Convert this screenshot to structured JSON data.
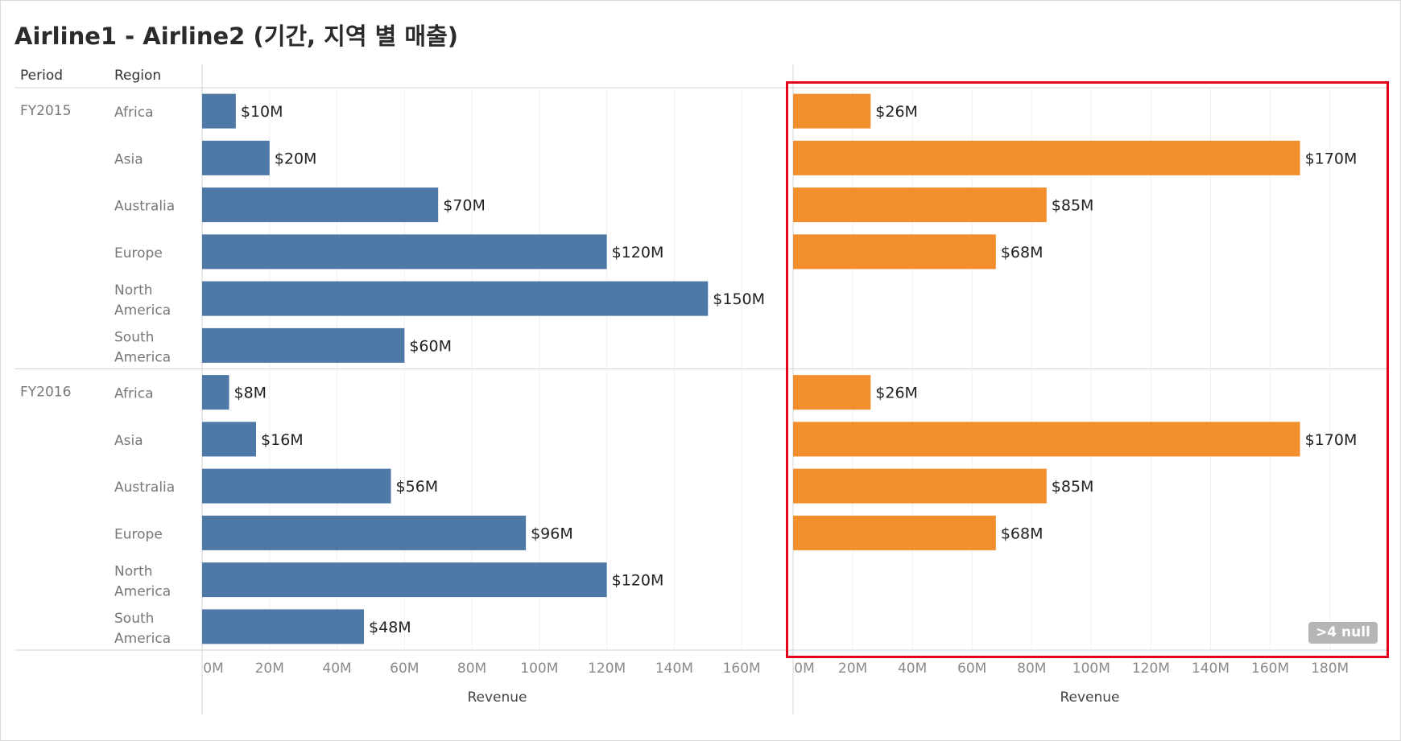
{
  "title": "Airline1 - Airline2 (기간, 지역 별 매출)",
  "headers": {
    "period": "Period",
    "region": "Region"
  },
  "null_badge": ">4 null",
  "colors": {
    "airline1": "#4e79a7",
    "airline2": "#f28e2b",
    "highlight": "#e3001b"
  },
  "chart_data": {
    "type": "bar",
    "orientation": "horizontal",
    "title": "Airline1 - Airline2 (기간, 지역 별 매출)",
    "groups": [
      {
        "period": "FY2015",
        "regions": [
          "Africa",
          "Asia",
          "Australia",
          "Europe",
          "North America",
          "South America"
        ]
      },
      {
        "period": "FY2016",
        "regions": [
          "Africa",
          "Asia",
          "Australia",
          "Europe",
          "North America",
          "South America"
        ]
      }
    ],
    "panels": [
      {
        "name": "Airline1",
        "xlabel": "Revenue",
        "xlim": [
          0,
          175
        ],
        "ticks": [
          0,
          20,
          40,
          60,
          80,
          100,
          120,
          140,
          160
        ],
        "tick_labels": [
          "0M",
          "20M",
          "40M",
          "60M",
          "80M",
          "100M",
          "120M",
          "140M",
          "160M"
        ],
        "values": [
          [
            10,
            20,
            70,
            120,
            150,
            60
          ],
          [
            8,
            16,
            56,
            96,
            120,
            48
          ]
        ],
        "labels": [
          [
            "$10M",
            "$20M",
            "$70M",
            "$120M",
            "$150M",
            "$60M"
          ],
          [
            "$8M",
            "$16M",
            "$56M",
            "$96M",
            "$120M",
            "$48M"
          ]
        ]
      },
      {
        "name": "Airline2",
        "xlabel": "Revenue",
        "xlim": [
          0,
          199
        ],
        "ticks": [
          0,
          20,
          40,
          60,
          80,
          100,
          120,
          140,
          160,
          180
        ],
        "tick_labels": [
          "0M",
          "20M",
          "40M",
          "60M",
          "80M",
          "100M",
          "120M",
          "140M",
          "160M",
          "180M"
        ],
        "values": [
          [
            26,
            170,
            85,
            68,
            null,
            null
          ],
          [
            26,
            170,
            85,
            68,
            null,
            null
          ]
        ],
        "labels": [
          [
            "$26M",
            "$170M",
            "$85M",
            "$68M",
            "",
            ""
          ],
          [
            "$26M",
            "$170M",
            "$85M",
            "$68M",
            "",
            ""
          ]
        ]
      }
    ],
    "gridlines": true,
    "legend": "none"
  }
}
